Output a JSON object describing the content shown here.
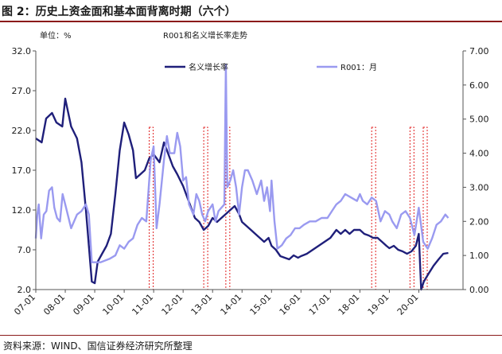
{
  "figure": {
    "title": "图 2：历史上资金面和基本面背离时期（六个）",
    "source": "资料来源：WIND、国信证券经济研究所整理"
  },
  "colors": {
    "series_nominal": "#1f1f7a",
    "series_r001": "#9a9af0",
    "divergence_box": "#e02020",
    "title_rule": "#8b1a1a"
  },
  "chart_data": {
    "type": "line",
    "title": "R001和名义增长率走势",
    "ylabel_left": "单位：%",
    "ylim_left": [
      2.0,
      32.0
    ],
    "yticks_left": [
      "2.0",
      "7.0",
      "12.0",
      "17.0",
      "22.0",
      "27.0",
      "32.0"
    ],
    "ylim_right": [
      0.0,
      7.0
    ],
    "yticks_right": [
      "0.00",
      "1.00",
      "2.00",
      "3.00",
      "4.00",
      "5.00",
      "6.00",
      "7.00"
    ],
    "xlim": [
      2007.0,
      2021.5
    ],
    "xticks": [
      "07-01",
      "08-01",
      "09-01",
      "10-01",
      "11-01",
      "12-01",
      "13-01",
      "14-01",
      "15-01",
      "16-01",
      "17-01",
      "18-01",
      "19-01",
      "20-01"
    ],
    "legend_position": "top",
    "grid": false,
    "series": [
      {
        "name": "名义增长率",
        "axis": "left",
        "points": [
          [
            2007.0,
            21.0
          ],
          [
            2007.2,
            20.5
          ],
          [
            2007.35,
            23.5
          ],
          [
            2007.55,
            24.2
          ],
          [
            2007.7,
            23.0
          ],
          [
            2007.9,
            22.5
          ],
          [
            2008.0,
            26.0
          ],
          [
            2008.2,
            22.5
          ],
          [
            2008.4,
            21.0
          ],
          [
            2008.55,
            18.0
          ],
          [
            2008.7,
            12.0
          ],
          [
            2008.8,
            7.5
          ],
          [
            2008.9,
            3.0
          ],
          [
            2009.0,
            2.8
          ],
          [
            2009.1,
            5.5
          ],
          [
            2009.25,
            6.5
          ],
          [
            2009.4,
            7.5
          ],
          [
            2009.55,
            9.0
          ],
          [
            2009.7,
            14.0
          ],
          [
            2009.85,
            19.5
          ],
          [
            2010.0,
            23.0
          ],
          [
            2010.15,
            21.5
          ],
          [
            2010.3,
            19.5
          ],
          [
            2010.4,
            16.0
          ],
          [
            2010.55,
            16.5
          ],
          [
            2010.7,
            17.0
          ],
          [
            2010.85,
            18.5
          ],
          [
            2011.0,
            19.0
          ],
          [
            2011.2,
            18.0
          ],
          [
            2011.35,
            20.5
          ],
          [
            2011.5,
            19.0
          ],
          [
            2011.65,
            17.5
          ],
          [
            2011.8,
            16.5
          ],
          [
            2012.0,
            15.0
          ],
          [
            2012.2,
            13.0
          ],
          [
            2012.4,
            11.0
          ],
          [
            2012.55,
            10.5
          ],
          [
            2012.7,
            9.5
          ],
          [
            2012.85,
            10.0
          ],
          [
            2013.0,
            11.0
          ],
          [
            2013.15,
            10.5
          ],
          [
            2013.3,
            11.0
          ],
          [
            2013.45,
            11.5
          ],
          [
            2013.6,
            12.0
          ],
          [
            2013.75,
            12.5
          ],
          [
            2013.9,
            11.5
          ],
          [
            2014.0,
            10.5
          ],
          [
            2014.15,
            10.0
          ],
          [
            2014.3,
            9.5
          ],
          [
            2014.45,
            9.0
          ],
          [
            2014.6,
            8.5
          ],
          [
            2014.75,
            8.0
          ],
          [
            2014.9,
            8.5
          ],
          [
            2015.0,
            7.5
          ],
          [
            2015.15,
            7.0
          ],
          [
            2015.3,
            6.2
          ],
          [
            2015.45,
            6.0
          ],
          [
            2015.6,
            5.8
          ],
          [
            2015.75,
            6.3
          ],
          [
            2015.9,
            6.0
          ],
          [
            2016.0,
            6.2
          ],
          [
            2016.2,
            6.5
          ],
          [
            2016.4,
            7.0
          ],
          [
            2016.6,
            7.5
          ],
          [
            2016.8,
            8.0
          ],
          [
            2017.0,
            8.5
          ],
          [
            2017.2,
            9.5
          ],
          [
            2017.35,
            9.0
          ],
          [
            2017.5,
            9.5
          ],
          [
            2017.65,
            9.0
          ],
          [
            2017.8,
            9.5
          ],
          [
            2018.0,
            9.5
          ],
          [
            2018.15,
            9.0
          ],
          [
            2018.3,
            8.8
          ],
          [
            2018.45,
            8.5
          ],
          [
            2018.6,
            8.5
          ],
          [
            2018.75,
            8.0
          ],
          [
            2018.9,
            7.5
          ],
          [
            2019.0,
            7.2
          ],
          [
            2019.15,
            7.5
          ],
          [
            2019.3,
            7.0
          ],
          [
            2019.45,
            6.8
          ],
          [
            2019.6,
            6.5
          ],
          [
            2019.75,
            6.8
          ],
          [
            2019.9,
            7.5
          ],
          [
            2020.0,
            9.0
          ],
          [
            2020.08,
            2.0
          ],
          [
            2020.17,
            3.0
          ],
          [
            2020.33,
            4.0
          ],
          [
            2020.5,
            5.0
          ],
          [
            2020.67,
            5.8
          ],
          [
            2020.83,
            6.5
          ],
          [
            2021.0,
            6.6
          ]
        ]
      },
      {
        "name": "R001：月",
        "axis": "right",
        "points": [
          [
            2007.0,
            1.5
          ],
          [
            2007.05,
            2.2
          ],
          [
            2007.1,
            2.5
          ],
          [
            2007.18,
            1.5
          ],
          [
            2007.27,
            2.2
          ],
          [
            2007.36,
            2.3
          ],
          [
            2007.45,
            2.9
          ],
          [
            2007.55,
            3.0
          ],
          [
            2007.63,
            2.4
          ],
          [
            2007.72,
            2.1
          ],
          [
            2007.82,
            2.0
          ],
          [
            2007.91,
            2.8
          ],
          [
            2008.0,
            2.5
          ],
          [
            2008.2,
            1.8
          ],
          [
            2008.4,
            2.2
          ],
          [
            2008.55,
            2.3
          ],
          [
            2008.7,
            2.5
          ],
          [
            2008.8,
            2.2
          ],
          [
            2008.9,
            0.8
          ],
          [
            2009.0,
            0.8
          ],
          [
            2009.2,
            0.8
          ],
          [
            2009.5,
            0.9
          ],
          [
            2009.7,
            1.0
          ],
          [
            2009.85,
            1.3
          ],
          [
            2010.0,
            1.2
          ],
          [
            2010.15,
            1.4
          ],
          [
            2010.3,
            1.5
          ],
          [
            2010.45,
            1.9
          ],
          [
            2010.6,
            2.1
          ],
          [
            2010.75,
            2.0
          ],
          [
            2010.9,
            3.8
          ],
          [
            2011.0,
            4.2
          ],
          [
            2011.1,
            1.8
          ],
          [
            2011.2,
            2.5
          ],
          [
            2011.35,
            3.8
          ],
          [
            2011.45,
            4.5
          ],
          [
            2011.55,
            4.0
          ],
          [
            2011.7,
            4.0
          ],
          [
            2011.8,
            4.6
          ],
          [
            2011.9,
            4.2
          ],
          [
            2012.0,
            3.2
          ],
          [
            2012.1,
            3.3
          ],
          [
            2012.2,
            2.5
          ],
          [
            2012.35,
            2.2
          ],
          [
            2012.45,
            2.8
          ],
          [
            2012.55,
            2.6
          ],
          [
            2012.65,
            2.2
          ],
          [
            2012.75,
            2.0
          ],
          [
            2012.85,
            2.3
          ],
          [
            2013.0,
            2.5
          ],
          [
            2013.1,
            2.0
          ],
          [
            2013.2,
            2.3
          ],
          [
            2013.3,
            2.4
          ],
          [
            2013.4,
            2.5
          ],
          [
            2013.45,
            6.6
          ],
          [
            2013.5,
            3.0
          ],
          [
            2013.6,
            3.2
          ],
          [
            2013.7,
            3.5
          ],
          [
            2013.8,
            3.0
          ],
          [
            2013.9,
            2.2
          ],
          [
            2014.0,
            3.0
          ],
          [
            2014.1,
            3.5
          ],
          [
            2014.2,
            3.5
          ],
          [
            2014.35,
            3.2
          ],
          [
            2014.5,
            2.8
          ],
          [
            2014.65,
            3.2
          ],
          [
            2014.75,
            2.6
          ],
          [
            2014.85,
            3.0
          ],
          [
            2014.95,
            2.3
          ],
          [
            2015.0,
            3.2
          ],
          [
            2015.1,
            2.0
          ],
          [
            2015.2,
            1.2
          ],
          [
            2015.35,
            1.3
          ],
          [
            2015.5,
            1.5
          ],
          [
            2015.65,
            1.6
          ],
          [
            2015.8,
            1.8
          ],
          [
            2015.95,
            1.8
          ],
          [
            2016.1,
            1.9
          ],
          [
            2016.3,
            2.0
          ],
          [
            2016.5,
            2.0
          ],
          [
            2016.7,
            2.1
          ],
          [
            2016.9,
            2.1
          ],
          [
            2017.05,
            2.3
          ],
          [
            2017.2,
            2.5
          ],
          [
            2017.35,
            2.6
          ],
          [
            2017.5,
            2.8
          ],
          [
            2017.7,
            2.7
          ],
          [
            2017.9,
            2.6
          ],
          [
            2018.0,
            2.8
          ],
          [
            2018.1,
            2.6
          ],
          [
            2018.25,
            2.5
          ],
          [
            2018.4,
            2.7
          ],
          [
            2018.55,
            2.6
          ],
          [
            2018.7,
            2.0
          ],
          [
            2018.85,
            2.3
          ],
          [
            2019.0,
            2.2
          ],
          [
            2019.1,
            2.0
          ],
          [
            2019.25,
            1.8
          ],
          [
            2019.4,
            2.2
          ],
          [
            2019.55,
            2.3
          ],
          [
            2019.7,
            2.1
          ],
          [
            2019.85,
            1.6
          ],
          [
            2020.0,
            2.4
          ],
          [
            2020.15,
            1.4
          ],
          [
            2020.3,
            1.2
          ],
          [
            2020.45,
            1.5
          ],
          [
            2020.6,
            1.9
          ],
          [
            2020.75,
            2.0
          ],
          [
            2020.9,
            2.2
          ],
          [
            2021.0,
            2.1
          ]
        ]
      }
    ],
    "divergence_periods": [
      [
        2010.85,
        2010.95
      ],
      [
        2012.7,
        2012.8
      ],
      [
        2013.45,
        2013.55
      ],
      [
        2018.4,
        2018.5
      ],
      [
        2019.7,
        2019.8
      ],
      [
        2020.15,
        2020.28
      ]
    ]
  }
}
